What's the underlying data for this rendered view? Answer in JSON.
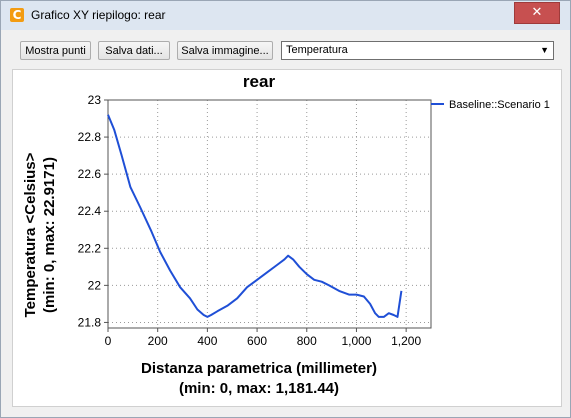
{
  "window": {
    "title": "Grafico XY riepilogo: rear",
    "close_glyph": "✕",
    "app_icon_letter": "C"
  },
  "toolbar": {
    "show_points": "Mostra punti",
    "save_data": "Salva dati...",
    "save_image": "Salva immagine...",
    "quantity_select": "Temperatura",
    "select_arrow": "▼"
  },
  "chart_data": {
    "type": "line",
    "title": "rear",
    "xlabel": "Distanza parametrica (millimeter)",
    "xlabel_line2": "(min: 0, max: 1,181.44)",
    "ylabel": "Temperatura <Celsius>",
    "ylabel_line2": "(min: 0, max: 22.9171)",
    "xlim": [
      0,
      1300
    ],
    "ylim": [
      21.77,
      23.0
    ],
    "xticks": [
      0,
      200,
      400,
      600,
      800,
      1000,
      1200
    ],
    "xtick_labels": [
      "0",
      "200",
      "400",
      "600",
      "800",
      "1,000",
      "1,200"
    ],
    "yticks": [
      21.8,
      22.0,
      22.2,
      22.4,
      22.6,
      22.8,
      23.0
    ],
    "ytick_labels": [
      "21.8",
      "22",
      "22.2",
      "22.4",
      "22.6",
      "22.8",
      "23"
    ],
    "grid": true,
    "legend_position": "right",
    "color": "#1f4fd6",
    "series": [
      {
        "name": "Baseline::Scenario 1",
        "x": [
          0,
          25,
          55,
          90,
          130,
          175,
          210,
          250,
          290,
          330,
          360,
          385,
          400,
          415,
          440,
          480,
          520,
          560,
          600,
          640,
          680,
          710,
          725,
          745,
          770,
          800,
          830,
          860,
          890,
          930,
          970,
          1000,
          1030,
          1055,
          1075,
          1090,
          1110,
          1130,
          1150,
          1165,
          1181
        ],
        "y": [
          22.92,
          22.84,
          22.7,
          22.53,
          22.42,
          22.29,
          22.18,
          22.08,
          21.99,
          21.93,
          21.87,
          21.84,
          21.83,
          21.84,
          21.86,
          21.89,
          21.93,
          21.99,
          22.03,
          22.07,
          22.11,
          22.14,
          22.16,
          22.14,
          22.1,
          22.06,
          22.03,
          22.02,
          22.0,
          21.97,
          21.95,
          21.95,
          21.94,
          21.9,
          21.85,
          21.83,
          21.83,
          21.85,
          21.84,
          21.83,
          21.97
        ]
      }
    ]
  }
}
